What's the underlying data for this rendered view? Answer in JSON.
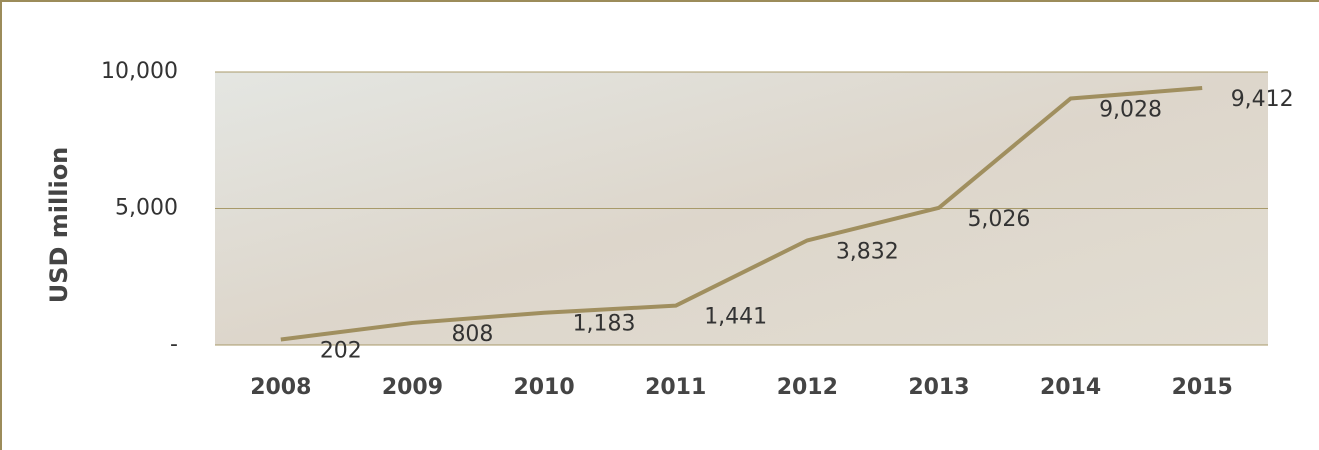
{
  "chart_data": {
    "type": "line",
    "y_label": "USD million",
    "categories": [
      "2008",
      "2009",
      "2010",
      "2011",
      "2012",
      "2013",
      "2014",
      "2015"
    ],
    "series": [
      {
        "name": "USD million",
        "color": "#a08f5f",
        "values": [
          202,
          808,
          1183,
          1441,
          3832,
          5026,
          9028,
          9412
        ],
        "value_labels": [
          "202",
          "808",
          "1,183",
          "1,441",
          "3,832",
          "5,026",
          "9,028",
          "9,412"
        ]
      }
    ],
    "ylim": [
      0,
      10000
    ],
    "yticks": [
      {
        "value": 0,
        "label": "-"
      },
      {
        "value": 5000,
        "label": "5,000"
      },
      {
        "value": 10000,
        "label": "10,000"
      }
    ],
    "grid": true
  }
}
